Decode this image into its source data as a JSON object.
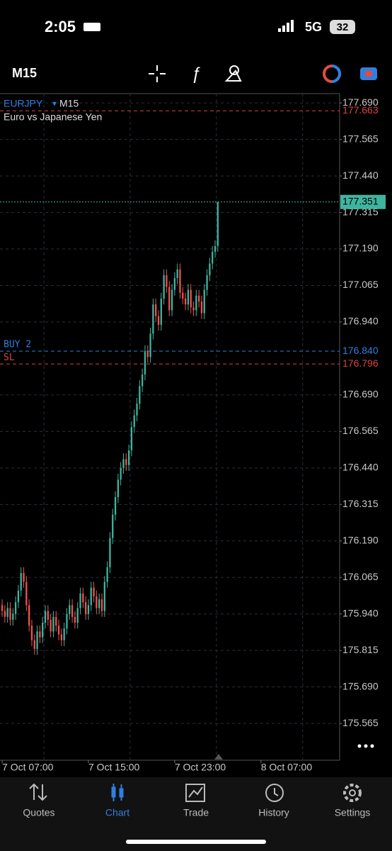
{
  "status": {
    "time": "2:05",
    "network": "5G",
    "battery": "32"
  },
  "toolbar": {
    "timeframe": "M15"
  },
  "chart_data": {
    "type": "candlestick",
    "symbol": "EURJPY",
    "timeframe": "M15",
    "description": "Euro vs Japanese Yen",
    "bull_color": "#3fb5a0",
    "bear_color": "#ef5350",
    "grid": true,
    "ylim": [
      175.439,
      177.722
    ],
    "yticks": [
      {
        "value": 177.69,
        "label": "177.690"
      },
      177.565,
      {
        "value": 177.44,
        "label": "177.440"
      },
      177.315,
      {
        "value": 177.19,
        "label": "177.190"
      },
      177.065,
      {
        "value": 176.94,
        "label": "176.940"
      },
      {
        "value": 176.69,
        "label": "176.690"
      },
      176.565,
      {
        "value": 176.44,
        "label": "176.440"
      },
      176.315,
      {
        "value": 176.19,
        "label": "176.190"
      },
      176.065,
      {
        "value": 175.94,
        "label": "175.940"
      },
      175.815,
      {
        "value": 175.69,
        "label": "175.690"
      },
      175.565
    ],
    "xlim": [
      -0.8,
      125.2
    ],
    "xticks": [
      {
        "value": 0,
        "label": "7 Oct 07:00"
      },
      {
        "value": 32,
        "label": "7 Oct 15:00"
      },
      {
        "value": 64,
        "label": "7 Oct 23:00"
      },
      {
        "value": 96,
        "label": "8 Oct 07:00"
      }
    ],
    "levels": [
      {
        "price": 177.663,
        "color": "#d9443f"
      },
      {
        "price": 177.351,
        "color": "#3fb5a0",
        "boxed": true
      },
      {
        "name": "BUY 2",
        "price": {
          "value": 176.84,
          "label": "176.840"
        },
        "color": "#2f7fe0"
      },
      {
        "name": "SL",
        "price": 176.796,
        "color": "#d9443f"
      }
    ],
    "open": [
      175.97,
      175.95,
      175.93,
      175.96,
      175.92,
      175.94,
      175.98,
      176.02,
      176.08,
      176.05,
      175.97,
      175.9,
      175.85,
      175.82,
      175.88,
      175.86,
      175.91,
      175.95,
      175.92,
      175.88,
      175.93,
      175.9,
      175.87,
      175.85,
      175.89,
      175.94,
      175.97,
      175.93,
      175.91,
      175.96,
      176.01,
      175.98,
      175.94,
      175.97,
      176.03,
      176.0,
      175.96,
      175.99,
      175.95,
      176.05,
      176.1,
      176.2,
      176.28,
      176.34,
      176.4,
      176.44,
      176.47,
      176.45,
      176.5,
      176.58,
      176.62,
      176.66,
      176.72,
      176.76,
      176.84,
      176.82,
      176.9,
      177.0,
      176.96,
      176.93,
      177.02,
      177.1,
      177.06,
      176.98,
      177.05,
      177.09,
      177.12,
      177.04,
      177.02,
      177.0,
      177.05,
      176.99,
      176.98,
      177.03,
      177.01,
      176.97,
      177.05,
      177.1,
      177.14,
      177.18,
      177.2
    ],
    "high": [
      175.99,
      175.97,
      175.98,
      175.98,
      175.96,
      176.0,
      176.04,
      176.1,
      176.1,
      176.07,
      175.99,
      175.92,
      175.87,
      175.9,
      175.9,
      175.93,
      175.97,
      175.97,
      175.94,
      175.95,
      175.95,
      175.92,
      175.89,
      175.91,
      175.96,
      175.99,
      175.99,
      175.95,
      175.98,
      176.03,
      176.03,
      176.0,
      175.99,
      176.05,
      176.05,
      176.02,
      176.01,
      176.01,
      176.07,
      176.12,
      176.22,
      176.3,
      176.36,
      176.42,
      176.46,
      176.49,
      176.49,
      176.52,
      176.6,
      176.64,
      176.68,
      176.74,
      176.78,
      176.86,
      176.86,
      176.92,
      177.02,
      177.02,
      176.98,
      177.04,
      177.12,
      177.12,
      177.08,
      177.07,
      177.11,
      177.14,
      177.14,
      177.06,
      177.04,
      177.07,
      177.07,
      177.01,
      177.05,
      177.05,
      177.03,
      177.07,
      177.12,
      177.16,
      177.2,
      177.22,
      177.351
    ],
    "low": [
      175.93,
      175.91,
      175.91,
      175.9,
      175.9,
      175.92,
      175.96,
      176.0,
      176.03,
      175.95,
      175.88,
      175.83,
      175.8,
      175.8,
      175.84,
      175.84,
      175.89,
      175.9,
      175.86,
      175.86,
      175.88,
      175.85,
      175.83,
      175.83,
      175.87,
      175.92,
      175.91,
      175.89,
      175.89,
      175.94,
      175.96,
      175.92,
      175.92,
      175.95,
      175.98,
      175.94,
      175.94,
      175.93,
      175.93,
      176.03,
      176.08,
      176.18,
      176.26,
      176.32,
      176.38,
      176.42,
      176.43,
      176.43,
      176.48,
      176.56,
      176.6,
      176.64,
      176.7,
      176.74,
      176.8,
      176.8,
      176.88,
      176.94,
      176.91,
      176.91,
      177.0,
      177.04,
      176.96,
      176.96,
      177.03,
      177.07,
      177.02,
      177.0,
      176.98,
      176.98,
      176.97,
      176.96,
      176.96,
      176.99,
      176.95,
      176.95,
      177.03,
      177.08,
      177.12,
      177.16,
      177.18
    ],
    "close": [
      175.95,
      175.93,
      175.96,
      175.92,
      175.94,
      175.98,
      176.02,
      176.08,
      176.05,
      175.97,
      175.9,
      175.85,
      175.82,
      175.88,
      175.86,
      175.91,
      175.95,
      175.92,
      175.88,
      175.93,
      175.9,
      175.87,
      175.85,
      175.89,
      175.94,
      175.97,
      175.93,
      175.91,
      175.96,
      176.01,
      175.98,
      175.94,
      175.97,
      176.03,
      176.0,
      175.96,
      175.99,
      175.95,
      176.05,
      176.1,
      176.2,
      176.28,
      176.34,
      176.4,
      176.44,
      176.47,
      176.45,
      176.5,
      176.58,
      176.62,
      176.66,
      176.72,
      176.76,
      176.84,
      176.82,
      176.9,
      177.0,
      176.96,
      176.93,
      177.02,
      177.1,
      177.06,
      176.98,
      177.05,
      177.09,
      177.12,
      177.04,
      177.02,
      177.0,
      177.05,
      176.99,
      176.98,
      177.03,
      177.01,
      176.97,
      177.05,
      177.1,
      177.14,
      177.18,
      177.2,
      177.351
    ]
  },
  "nav": {
    "items": [
      "Quotes",
      "Chart",
      "Trade",
      "History",
      "Settings"
    ],
    "active": 1
  }
}
